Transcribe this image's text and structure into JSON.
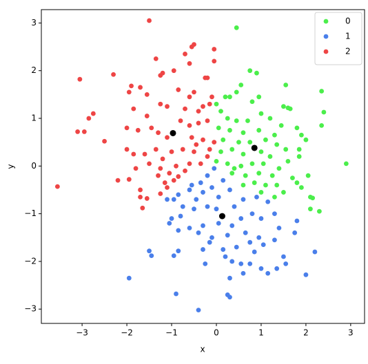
{
  "chart_data": {
    "type": "scatter",
    "xlabel": "x",
    "ylabel": "y",
    "xlim": [
      -3.91,
      3.31
    ],
    "ylim": [
      -3.3,
      3.28
    ],
    "xticks": [
      {
        "value": -3,
        "label": "−3"
      },
      {
        "value": -2,
        "label": "−2"
      },
      {
        "value": -1,
        "label": "−1"
      },
      0,
      1,
      2,
      3
    ],
    "yticks": [
      {
        "value": -3,
        "label": "−3"
      },
      {
        "value": -2,
        "label": "−2"
      },
      {
        "value": -1,
        "label": "−1"
      },
      0,
      1,
      2,
      3
    ],
    "legend": "upper right",
    "series": [
      {
        "name": "0",
        "color": "#4bee4b",
        "x": [
          0.45,
          0.75,
          0.9,
          0.55,
          1.55,
          2.35,
          0.2,
          0.3,
          0.45,
          0.0,
          0.1,
          0.8,
          0.95,
          1.5,
          1.6,
          1.65,
          2.4,
          0.25,
          0.45,
          0.7,
          1.0,
          1.2,
          1.45,
          1.8,
          2.35,
          0.05,
          0.3,
          0.6,
          0.95,
          1.3,
          1.9,
          2.0,
          0.15,
          0.5,
          0.75,
          1.1,
          1.35,
          1.85,
          0.1,
          0.35,
          0.6,
          1.0,
          1.2,
          1.6,
          1.85,
          2.9,
          0.0,
          0.25,
          0.55,
          0.8,
          1.05,
          1.4,
          0.35,
          0.65,
          0.95,
          1.25,
          1.7,
          2.05,
          0.6,
          0.85,
          1.1,
          1.35,
          1.5,
          1.8,
          1.9,
          1.0,
          1.3,
          2.1,
          2.15,
          2.1,
          2.3,
          0.4,
          1.55
        ],
        "values": [
          2.9,
          2.0,
          1.95,
          1.7,
          1.7,
          1.57,
          1.45,
          1.45,
          1.55,
          1.3,
          1.15,
          1.35,
          1.45,
          1.25,
          1.22,
          1.2,
          1.13,
          1.0,
          0.95,
          0.95,
          1.1,
          1.0,
          0.85,
          0.8,
          0.85,
          0.8,
          0.75,
          0.7,
          0.75,
          0.65,
          0.65,
          0.55,
          0.55,
          0.5,
          0.5,
          0.55,
          0.45,
          0.35,
          0.3,
          0.35,
          0.25,
          0.3,
          0.2,
          0.1,
          0.2,
          0.05,
          0.1,
          0.05,
          0.0,
          0.05,
          0.05,
          -0.05,
          -0.15,
          -0.2,
          -0.15,
          -0.2,
          -0.25,
          -0.2,
          -0.4,
          -0.35,
          -0.4,
          -0.4,
          -0.55,
          -0.35,
          -0.45,
          -0.55,
          -0.65,
          -0.65,
          -0.67,
          -0.9,
          -0.95,
          -0.05,
          0.35
        ]
      },
      {
        "name": "1",
        "color": "#4a7fea",
        "x": [
          -0.05,
          -0.2,
          -0.35,
          -0.55,
          -0.6,
          -0.85,
          -1.1,
          -0.3,
          -0.1,
          0.15,
          0.3,
          0.05,
          -0.45,
          -0.75,
          -0.95,
          -1.0,
          -0.8,
          -0.5,
          -0.2,
          0.0,
          0.4,
          0.6,
          0.9,
          1.15,
          -1.05,
          -0.6,
          -0.3,
          0.05,
          0.35,
          0.55,
          0.8,
          1.0,
          1.3,
          -0.85,
          -0.4,
          -0.1,
          0.25,
          0.65,
          0.95,
          1.4,
          1.8,
          1.75,
          -0.15,
          0.15,
          0.45,
          0.75,
          1.05,
          1.3,
          -1.5,
          -1.45,
          -0.85,
          -0.95,
          -0.3,
          0.2,
          0.55,
          0.85,
          1.5,
          1.55,
          2.2,
          -0.25,
          0.35,
          0.6,
          1.0,
          1.35,
          2.0,
          -1.95,
          0.3,
          0.75,
          1.15,
          -0.9,
          0.25,
          0.3,
          -0.4
        ],
        "values": [
          -0.05,
          -0.2,
          -0.35,
          -0.4,
          -0.5,
          -0.6,
          -0.7,
          -0.55,
          -0.45,
          -0.3,
          -0.5,
          -0.65,
          -0.7,
          -0.85,
          -0.7,
          -1.1,
          -1.05,
          -0.9,
          -0.85,
          -0.9,
          -0.85,
          -0.7,
          -0.65,
          -0.75,
          -1.2,
          -1.3,
          -1.25,
          -1.2,
          -1.25,
          -1.1,
          -1.0,
          -1.1,
          -1.0,
          -1.35,
          -1.4,
          -1.5,
          -1.45,
          -1.4,
          -1.5,
          -1.3,
          -1.15,
          -1.4,
          -1.6,
          -1.75,
          -1.7,
          -1.6,
          -1.65,
          -1.55,
          -1.78,
          -1.88,
          -1.78,
          -1.88,
          -1.75,
          -1.9,
          -2.05,
          -1.8,
          -1.9,
          -2.05,
          -1.8,
          -2.05,
          -2.0,
          -2.25,
          -2.15,
          -2.15,
          -2.28,
          -2.35,
          -2.35,
          -2.05,
          -2.25,
          -2.68,
          -2.7,
          -2.75,
          -3.02
        ]
      },
      {
        "name": "2",
        "color": "#ee4545",
        "x": [
          -1.5,
          -0.5,
          -0.55,
          -0.05,
          -0.7,
          -0.05,
          -1.35,
          -0.6,
          -0.95,
          -1.2,
          -1.25,
          -3.05,
          -2.3,
          -0.2,
          -0.25,
          -1.9,
          -1.95,
          -1.7,
          -0.85,
          -0.5,
          -1.55,
          -0.6,
          -0.1,
          -1.25,
          -1.1,
          -0.7,
          -0.4,
          -0.3,
          -0.15,
          -2.85,
          -2.75,
          -1.85,
          -1.55,
          -3.1,
          -2.95,
          -2.5,
          -2.0,
          -1.75,
          -1.45,
          -0.8,
          -0.6,
          -0.4,
          -0.2,
          -1.3,
          -1.1,
          -0.55,
          -0.3,
          -0.05,
          -2.0,
          -1.85,
          -1.6,
          -1.35,
          -1.0,
          -0.75,
          -0.5,
          -0.2,
          -1.5,
          -1.2,
          -0.9,
          -0.6,
          -0.35,
          -1.8,
          -1.25,
          -1.3,
          -1.05,
          -0.7,
          -2.2,
          -1.95,
          -1.15,
          -0.95,
          -1.7,
          -1.1,
          -1.7,
          -1.55,
          -1.65,
          -3.55,
          -1.25,
          -0.85,
          -0.15,
          -0.45
        ],
        "values": [
          3.05,
          2.55,
          2.5,
          2.45,
          2.35,
          2.2,
          2.25,
          2.15,
          2.0,
          1.95,
          1.9,
          1.82,
          1.92,
          1.85,
          1.85,
          1.68,
          1.55,
          1.65,
          1.6,
          1.55,
          1.5,
          1.45,
          1.45,
          1.3,
          1.25,
          1.2,
          1.15,
          1.25,
          1.3,
          1.0,
          1.1,
          1.2,
          1.05,
          0.72,
          0.72,
          0.52,
          0.8,
          0.75,
          0.8,
          0.95,
          0.85,
          0.9,
          0.95,
          0.7,
          0.6,
          0.6,
          0.55,
          0.5,
          0.35,
          0.25,
          0.25,
          0.35,
          0.3,
          0.35,
          0.3,
          0.2,
          0.05,
          0.15,
          0.0,
          0.05,
          0.05,
          -0.05,
          -0.05,
          -0.2,
          -0.15,
          -0.1,
          -0.3,
          -0.28,
          -0.35,
          -0.3,
          -0.5,
          -0.45,
          -0.65,
          -0.68,
          -0.88,
          -0.43,
          -0.58,
          -0.22,
          0.35,
          0.45
        ]
      }
    ],
    "centers": {
      "color": "#000000",
      "x": [
        -0.97,
        0.85,
        0.13
      ],
      "values": [
        0.69,
        0.38,
        -1.05
      ]
    }
  }
}
